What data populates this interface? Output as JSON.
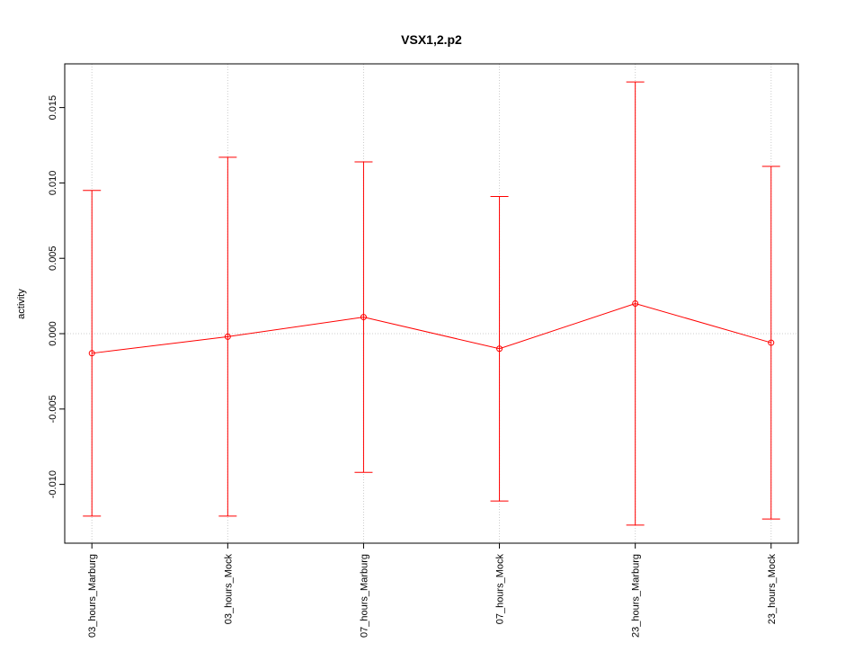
{
  "chart_data": {
    "type": "errorbar-line",
    "title": "VSX1,2.p2",
    "y_label": "activity",
    "categories": [
      "03_hours_Marburg",
      "03_hours_Mock",
      "07_hours_Marburg",
      "07_hours_Mock",
      "23_hours_Marburg",
      "23_hours_Mock"
    ],
    "series": [
      {
        "name": "VSX1,2.p2",
        "color": "#ff0000",
        "values": [
          -0.0013,
          -0.0002,
          0.0011,
          -0.001,
          0.002,
          -0.0006
        ],
        "errors": [
          0.0108,
          0.0119,
          0.0103,
          0.0101,
          0.0147,
          0.0117
        ]
      }
    ],
    "ylim": [
      -0.0139,
      0.0179
    ],
    "yticks": [
      {
        "value": -0.01,
        "label": "-0.010"
      },
      -0.005,
      {
        "value": 0,
        "label": "0.000"
      },
      0.005,
      {
        "value": 0.01,
        "label": "0.010"
      },
      0.015
    ],
    "grid": "x",
    "reference_line": 0
  }
}
